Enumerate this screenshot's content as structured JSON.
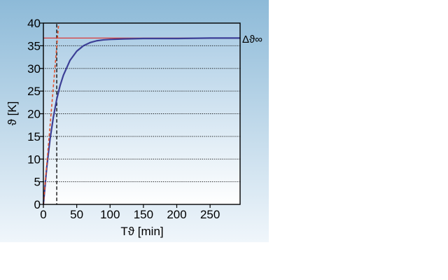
{
  "chart_data": {
    "type": "line",
    "xlabel": "Tϑ [min]",
    "ylabel": "ϑ [K]",
    "xlim": [
      0,
      295
    ],
    "ylim": [
      0,
      40
    ],
    "x_ticks": [
      0,
      50,
      100,
      150,
      200,
      250
    ],
    "y_ticks": [
      0,
      5,
      10,
      15,
      20,
      25,
      30,
      35,
      40
    ],
    "grid": "horizontal dotted",
    "asymptote": {
      "label": "Δϑ∞",
      "value": 36.7
    },
    "time_constant": 20,
    "series": [
      {
        "style": "curve",
        "x": [
          0,
          5,
          10,
          15,
          20,
          25,
          30,
          40,
          50,
          60,
          70,
          80,
          90,
          100,
          120,
          150,
          200,
          250,
          295
        ],
        "y": [
          0,
          8.1,
          14.4,
          19.3,
          23.2,
          26.2,
          28.5,
          31.8,
          33.8,
          35.0,
          35.7,
          36.1,
          36.3,
          36.4,
          36.5,
          36.6,
          36.6,
          36.7,
          36.7
        ]
      },
      {
        "style": "tangent",
        "x": [
          0,
          23
        ],
        "y": [
          0,
          40
        ]
      }
    ],
    "colors": {
      "curve": "#3c3f96",
      "tangent": "#e0502c",
      "asymptote": "#d93a3a",
      "panel_top": "#8dbad8",
      "panel_bottom": "#f0f6fb",
      "plot_top": "#a9cbe4",
      "plot_bottom": "#ffffff"
    }
  }
}
